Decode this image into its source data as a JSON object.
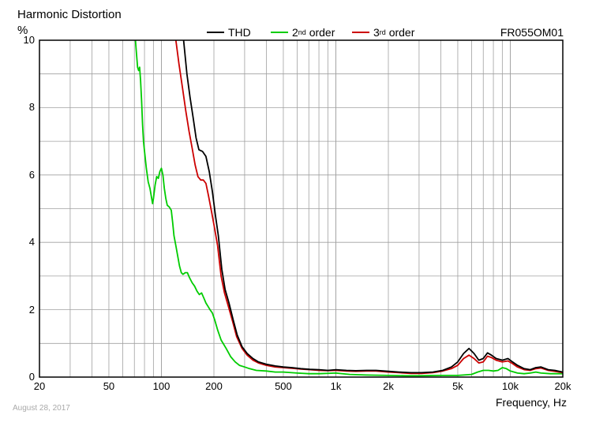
{
  "title": "Harmonic Distortion",
  "y_unit": "%",
  "model": "FR055OM01",
  "date": "August 28, 2017",
  "colors": {
    "thd": "#000000",
    "h2": "#00cc00",
    "h3": "#cc0000",
    "grid": "#a0a0a0"
  },
  "legend": [
    {
      "name": "THD",
      "sup": "",
      "rest": "",
      "color": "#000000"
    },
    {
      "name": "2",
      "sup": "nd",
      "rest": " order",
      "color": "#00cc00"
    },
    {
      "name": "3",
      "sup": "rd",
      "rest": " order",
      "color": "#cc0000"
    }
  ],
  "chart_data": {
    "type": "line",
    "title": "Harmonic Distortion",
    "xlabel": "Frequency, Hz",
    "ylabel": "%",
    "x_scale": "log",
    "xlim": [
      20,
      20000
    ],
    "ylim": [
      0,
      10
    ],
    "grid": true,
    "legend_position": "top",
    "x_ticks": [
      {
        "v": 20,
        "label": "20"
      },
      {
        "v": 50,
        "label": "50"
      },
      {
        "v": 100,
        "label": "100"
      },
      {
        "v": 200,
        "label": "200"
      },
      {
        "v": 500,
        "label": "500"
      },
      {
        "v": 1000,
        "label": "1k"
      },
      {
        "v": 2000,
        "label": "2k"
      },
      {
        "v": 5000,
        "label": "5k"
      },
      {
        "v": 10000,
        "label": "10k"
      },
      {
        "v": 20000,
        "label": "20k"
      }
    ],
    "y_ticks": [
      0,
      2,
      4,
      6,
      8,
      10
    ],
    "series": [
      {
        "name": "THD",
        "color": "#000000",
        "points": [
          [
            134,
            10
          ],
          [
            140,
            9.0
          ],
          [
            146,
            8.3
          ],
          [
            152,
            7.7
          ],
          [
            158,
            7.1
          ],
          [
            164,
            6.75
          ],
          [
            172,
            6.7
          ],
          [
            180,
            6.55
          ],
          [
            188,
            6.1
          ],
          [
            196,
            5.5
          ],
          [
            204,
            4.8
          ],
          [
            212,
            4.2
          ],
          [
            222,
            3.2
          ],
          [
            232,
            2.6
          ],
          [
            244,
            2.2
          ],
          [
            258,
            1.7
          ],
          [
            272,
            1.25
          ],
          [
            290,
            0.9
          ],
          [
            310,
            0.7
          ],
          [
            335,
            0.55
          ],
          [
            360,
            0.45
          ],
          [
            400,
            0.38
          ],
          [
            450,
            0.33
          ],
          [
            500,
            0.3
          ],
          [
            560,
            0.28
          ],
          [
            630,
            0.25
          ],
          [
            710,
            0.23
          ],
          [
            800,
            0.22
          ],
          [
            900,
            0.2
          ],
          [
            1000,
            0.22
          ],
          [
            1150,
            0.2
          ],
          [
            1300,
            0.19
          ],
          [
            1500,
            0.2
          ],
          [
            1700,
            0.2
          ],
          [
            2000,
            0.17
          ],
          [
            2300,
            0.15
          ],
          [
            2700,
            0.13
          ],
          [
            3100,
            0.13
          ],
          [
            3600,
            0.15
          ],
          [
            4100,
            0.2
          ],
          [
            4600,
            0.3
          ],
          [
            5000,
            0.45
          ],
          [
            5400,
            0.7
          ],
          [
            5800,
            0.85
          ],
          [
            6200,
            0.7
          ],
          [
            6600,
            0.5
          ],
          [
            7000,
            0.55
          ],
          [
            7400,
            0.72
          ],
          [
            7800,
            0.65
          ],
          [
            8300,
            0.55
          ],
          [
            9000,
            0.5
          ],
          [
            9700,
            0.55
          ],
          [
            10300,
            0.45
          ],
          [
            11000,
            0.35
          ],
          [
            12000,
            0.25
          ],
          [
            13000,
            0.22
          ],
          [
            14000,
            0.28
          ],
          [
            15000,
            0.3
          ],
          [
            16500,
            0.22
          ],
          [
            18000,
            0.2
          ],
          [
            20000,
            0.15
          ]
        ]
      },
      {
        "name": "2nd order",
        "color": "#00cc00",
        "points": [
          [
            71,
            10
          ],
          [
            72,
            9.6
          ],
          [
            73,
            9.2
          ],
          [
            74,
            9.1
          ],
          [
            75,
            9.2
          ],
          [
            76,
            8.8
          ],
          [
            77,
            8.2
          ],
          [
            78,
            7.5
          ],
          [
            79,
            7.0
          ],
          [
            80,
            6.7
          ],
          [
            82,
            6.2
          ],
          [
            84,
            5.8
          ],
          [
            86,
            5.6
          ],
          [
            88,
            5.3
          ],
          [
            89,
            5.15
          ],
          [
            90,
            5.3
          ],
          [
            92,
            5.7
          ],
          [
            94,
            5.95
          ],
          [
            96,
            5.9
          ],
          [
            98,
            6.1
          ],
          [
            100,
            6.2
          ],
          [
            102,
            6.0
          ],
          [
            104,
            5.6
          ],
          [
            106,
            5.3
          ],
          [
            108,
            5.1
          ],
          [
            111,
            5.05
          ],
          [
            114,
            4.95
          ],
          [
            116,
            4.6
          ],
          [
            118,
            4.2
          ],
          [
            121,
            3.9
          ],
          [
            124,
            3.6
          ],
          [
            127,
            3.3
          ],
          [
            130,
            3.1
          ],
          [
            133,
            3.05
          ],
          [
            137,
            3.1
          ],
          [
            141,
            3.1
          ],
          [
            145,
            2.95
          ],
          [
            150,
            2.8
          ],
          [
            155,
            2.7
          ],
          [
            160,
            2.55
          ],
          [
            165,
            2.45
          ],
          [
            170,
            2.5
          ],
          [
            175,
            2.35
          ],
          [
            180,
            2.2
          ],
          [
            185,
            2.1
          ],
          [
            190,
            2.0
          ],
          [
            196,
            1.9
          ],
          [
            202,
            1.7
          ],
          [
            210,
            1.4
          ],
          [
            220,
            1.1
          ],
          [
            235,
            0.85
          ],
          [
            250,
            0.6
          ],
          [
            265,
            0.45
          ],
          [
            280,
            0.35
          ],
          [
            300,
            0.3
          ],
          [
            320,
            0.25
          ],
          [
            350,
            0.2
          ],
          [
            400,
            0.18
          ],
          [
            450,
            0.15
          ],
          [
            500,
            0.15
          ],
          [
            600,
            0.12
          ],
          [
            700,
            0.1
          ],
          [
            800,
            0.1
          ],
          [
            1000,
            0.12
          ],
          [
            1200,
            0.08
          ],
          [
            1500,
            0.06
          ],
          [
            2000,
            0.05
          ],
          [
            2500,
            0.04
          ],
          [
            3000,
            0.04
          ],
          [
            4000,
            0.05
          ],
          [
            5000,
            0.05
          ],
          [
            6000,
            0.08
          ],
          [
            6500,
            0.15
          ],
          [
            7000,
            0.2
          ],
          [
            7500,
            0.2
          ],
          [
            8000,
            0.18
          ],
          [
            8500,
            0.2
          ],
          [
            9000,
            0.28
          ],
          [
            9500,
            0.25
          ],
          [
            10000,
            0.18
          ],
          [
            11000,
            0.12
          ],
          [
            12000,
            0.1
          ],
          [
            13000,
            0.12
          ],
          [
            14000,
            0.15
          ],
          [
            15000,
            0.12
          ],
          [
            17000,
            0.1
          ],
          [
            20000,
            0.1
          ]
        ]
      },
      {
        "name": "3rd order",
        "color": "#cc0000",
        "points": [
          [
            121,
            10
          ],
          [
            126,
            9.3
          ],
          [
            132,
            8.6
          ],
          [
            138,
            7.9
          ],
          [
            144,
            7.3
          ],
          [
            150,
            6.8
          ],
          [
            156,
            6.3
          ],
          [
            162,
            5.95
          ],
          [
            168,
            5.85
          ],
          [
            174,
            5.85
          ],
          [
            180,
            5.75
          ],
          [
            186,
            5.4
          ],
          [
            194,
            4.9
          ],
          [
            202,
            4.4
          ],
          [
            210,
            3.9
          ],
          [
            220,
            3.0
          ],
          [
            230,
            2.5
          ],
          [
            242,
            2.1
          ],
          [
            256,
            1.65
          ],
          [
            270,
            1.2
          ],
          [
            290,
            0.85
          ],
          [
            310,
            0.65
          ],
          [
            335,
            0.5
          ],
          [
            360,
            0.42
          ],
          [
            400,
            0.35
          ],
          [
            450,
            0.3
          ],
          [
            500,
            0.28
          ],
          [
            560,
            0.26
          ],
          [
            630,
            0.24
          ],
          [
            710,
            0.22
          ],
          [
            800,
            0.2
          ],
          [
            900,
            0.19
          ],
          [
            1000,
            0.2
          ],
          [
            1150,
            0.18
          ],
          [
            1300,
            0.17
          ],
          [
            1500,
            0.18
          ],
          [
            1700,
            0.18
          ],
          [
            2000,
            0.15
          ],
          [
            2300,
            0.13
          ],
          [
            2700,
            0.11
          ],
          [
            3100,
            0.11
          ],
          [
            3600,
            0.13
          ],
          [
            4100,
            0.18
          ],
          [
            4600,
            0.25
          ],
          [
            5000,
            0.35
          ],
          [
            5400,
            0.55
          ],
          [
            5800,
            0.65
          ],
          [
            6200,
            0.55
          ],
          [
            6600,
            0.42
          ],
          [
            7000,
            0.45
          ],
          [
            7400,
            0.62
          ],
          [
            7800,
            0.58
          ],
          [
            8300,
            0.5
          ],
          [
            9000,
            0.45
          ],
          [
            9700,
            0.48
          ],
          [
            10300,
            0.4
          ],
          [
            11000,
            0.3
          ],
          [
            12000,
            0.22
          ],
          [
            13000,
            0.2
          ],
          [
            14000,
            0.25
          ],
          [
            15000,
            0.27
          ],
          [
            16500,
            0.2
          ],
          [
            18000,
            0.17
          ],
          [
            20000,
            0.13
          ]
        ]
      }
    ]
  }
}
